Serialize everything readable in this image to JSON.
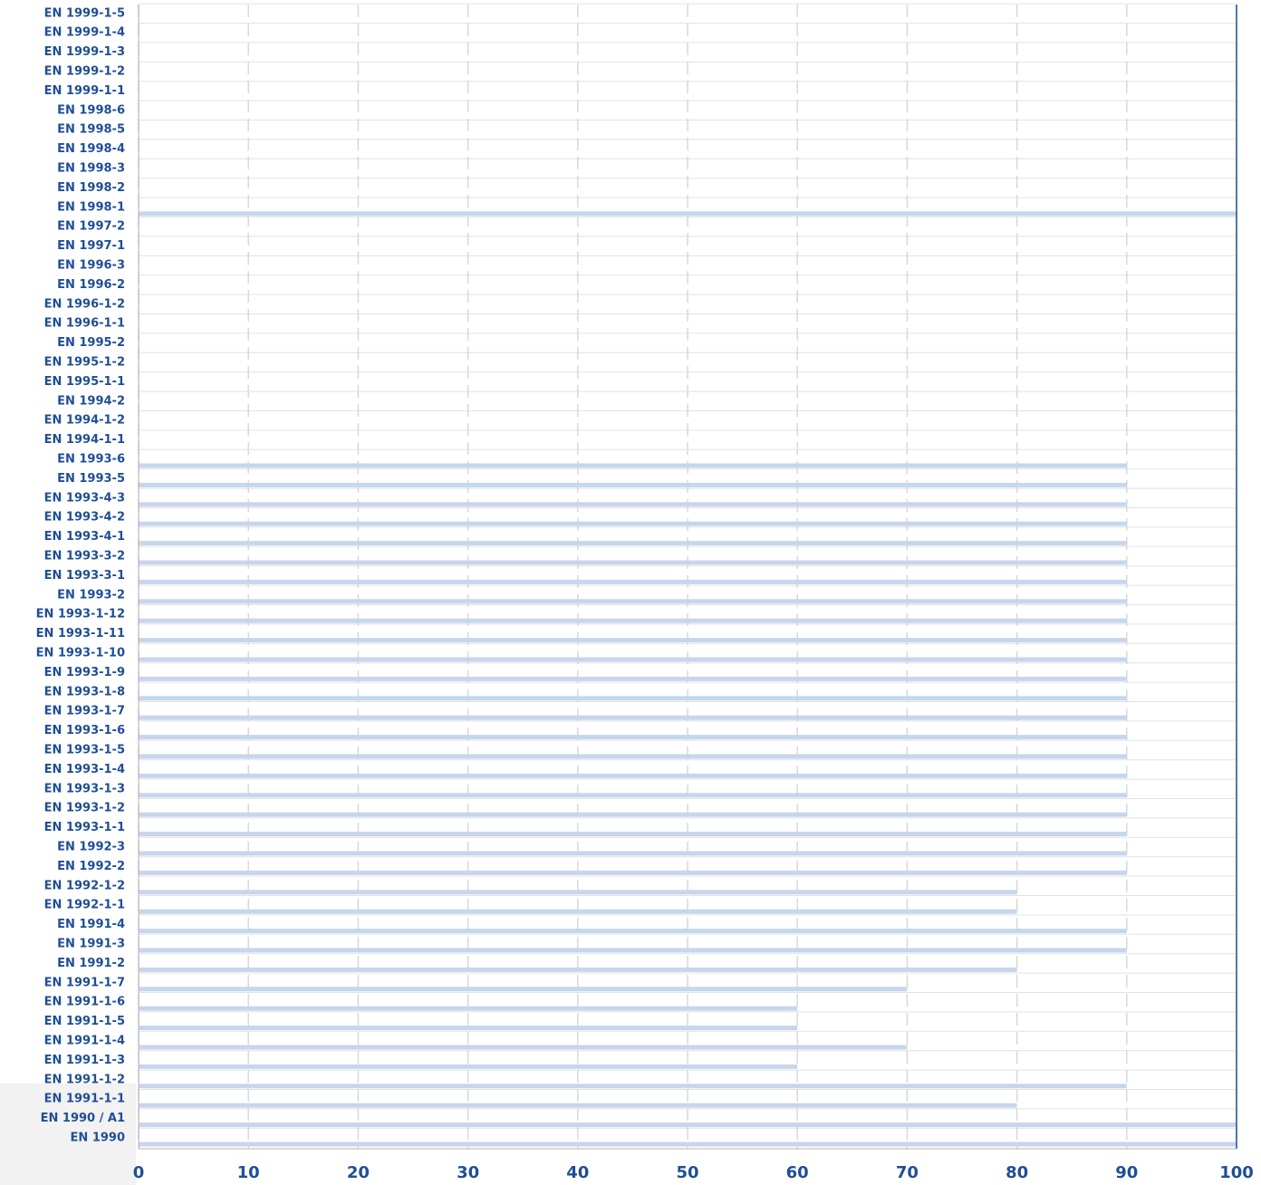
{
  "chart_data": {
    "type": "barh",
    "categories": [
      "EN 1990",
      "EN 1990 / A1",
      "EN 1991-1-1",
      "EN 1991-1-2",
      "EN 1991-1-3",
      "EN 1991-1-4",
      "EN 1991-1-5",
      "EN 1991-1-6",
      "EN 1991-1-7",
      "EN 1991-2",
      "EN 1991-3",
      "EN 1991-4",
      "EN 1992-1-1",
      "EN 1992-1-2",
      "EN 1992-2",
      "EN 1992-3",
      "EN 1993-1-1",
      "EN 1993-1-2",
      "EN 1993-1-3",
      "EN 1993-1-4",
      "EN 1993-1-5",
      "EN 1993-1-6",
      "EN 1993-1-7",
      "EN 1993-1-8",
      "EN 1993-1-9",
      "EN 1993-1-10",
      "EN 1993-1-11",
      "EN 1993-1-12",
      "EN 1993-2",
      "EN 1993-3-1",
      "EN 1993-3-2",
      "EN 1993-4-1",
      "EN 1993-4-2",
      "EN 1993-4-3",
      "EN 1993-5",
      "EN 1993-6",
      "EN 1994-1-1",
      "EN 1994-1-2",
      "EN 1994-2",
      "EN 1995-1-1",
      "EN 1995-1-2",
      "EN 1995-2",
      "EN 1996-1-1",
      "EN 1996-1-2",
      "EN 1996-2",
      "EN 1996-3",
      "EN 1997-1",
      "EN 1997-2",
      "EN 1998-1",
      "EN 1998-2",
      "EN 1998-3",
      "EN 1998-4",
      "EN 1998-5",
      "EN 1998-6",
      "EN 1999-1-1",
      "EN 1999-1-2",
      "EN 1999-1-3",
      "EN 1999-1-4",
      "EN 1999-1-5"
    ],
    "values": [
      100,
      100,
      80,
      90,
      60,
      70,
      60,
      60,
      70,
      80,
      90,
      90,
      80,
      80,
      90,
      90,
      90,
      90,
      90,
      90,
      90,
      90,
      90,
      90,
      90,
      90,
      90,
      90,
      90,
      90,
      90,
      90,
      90,
      90,
      90,
      90,
      0,
      0,
      0,
      0,
      0,
      0,
      0,
      0,
      0,
      0,
      0,
      0,
      100,
      0,
      0,
      0,
      0,
      0,
      0,
      0,
      0,
      0,
      0
    ],
    "color": "#c6d6ec",
    "xlim": [
      0,
      100
    ],
    "xticks": [
      0,
      10,
      20,
      30,
      40,
      50,
      60,
      70,
      80,
      90,
      100
    ],
    "grid": true
  }
}
